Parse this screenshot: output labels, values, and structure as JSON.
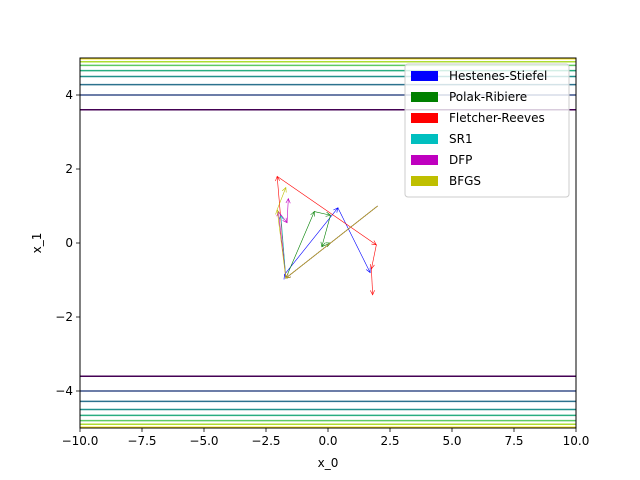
{
  "chart_data": {
    "type": "line",
    "title": "",
    "xlabel": "x_0",
    "ylabel": "x_1",
    "xlim": [
      -10,
      10
    ],
    "ylim": [
      -5,
      5
    ],
    "xticks": [
      -10,
      -7.5,
      -5,
      -2.5,
      0,
      2.5,
      5,
      7.5,
      10
    ],
    "xtick_labels": [
      "−10.0",
      "−7.5",
      "−5.0",
      "−2.5",
      "0.0",
      "2.5",
      "5.0",
      "7.5",
      "10.0"
    ],
    "yticks": [
      -4,
      -2,
      0,
      2,
      4
    ],
    "ytick_labels": [
      "−4",
      "−2",
      "0",
      "2",
      "4"
    ],
    "grid": false,
    "legend_position": "upper-right",
    "contour_levels": [
      {
        "y": 3.6,
        "color": "#440154"
      },
      {
        "y": 4.0,
        "color": "#3b528b"
      },
      {
        "y": 4.28,
        "color": "#2c728e"
      },
      {
        "y": 4.5,
        "color": "#21918c"
      },
      {
        "y": 4.66,
        "color": "#28ae80"
      },
      {
        "y": 4.8,
        "color": "#5ec962"
      },
      {
        "y": 4.9,
        "color": "#addc30"
      },
      {
        "y": 4.98,
        "color": "#fde725"
      }
    ],
    "series": [
      {
        "name": "Hestenes-Stiefel",
        "color": "#0000ff",
        "points": [
          [
            2.0,
            1.0
          ],
          [
            -1.7,
            -0.95
          ],
          [
            -1.75,
            -0.85
          ],
          [
            0.4,
            0.95
          ],
          [
            1.7,
            -0.8
          ]
        ]
      },
      {
        "name": "Polak-Ribiere",
        "color": "#008000",
        "points": [
          [
            2.0,
            1.0
          ],
          [
            -1.7,
            -0.95
          ],
          [
            -0.55,
            0.85
          ],
          [
            0.1,
            0.75
          ],
          [
            -0.25,
            -0.1
          ],
          [
            0.1,
            0.0
          ]
        ]
      },
      {
        "name": "Fletcher-Reeves",
        "color": "#ff0000",
        "points": [
          [
            2.0,
            1.0
          ],
          [
            -1.7,
            -0.95
          ],
          [
            -2.05,
            1.8
          ],
          [
            1.95,
            -0.05
          ],
          [
            1.75,
            -0.7
          ],
          [
            1.8,
            -1.4
          ]
        ]
      },
      {
        "name": "SR1",
        "color": "#00bfbf",
        "points": [
          [
            2.0,
            1.0
          ],
          [
            -1.7,
            -0.95
          ],
          [
            -1.9,
            0.75
          ]
        ]
      },
      {
        "name": "DFP",
        "color": "#bf00bf",
        "points": [
          [
            2.0,
            1.0
          ],
          [
            -1.7,
            -0.95
          ],
          [
            -2.0,
            0.85
          ],
          [
            -1.65,
            0.55
          ],
          [
            -1.6,
            1.2
          ]
        ]
      },
      {
        "name": "BFGS",
        "color": "#bfbf00",
        "points": [
          [
            2.0,
            1.0
          ],
          [
            -1.7,
            -0.95
          ],
          [
            -2.05,
            0.9
          ],
          [
            -1.7,
            1.5
          ]
        ]
      }
    ]
  }
}
